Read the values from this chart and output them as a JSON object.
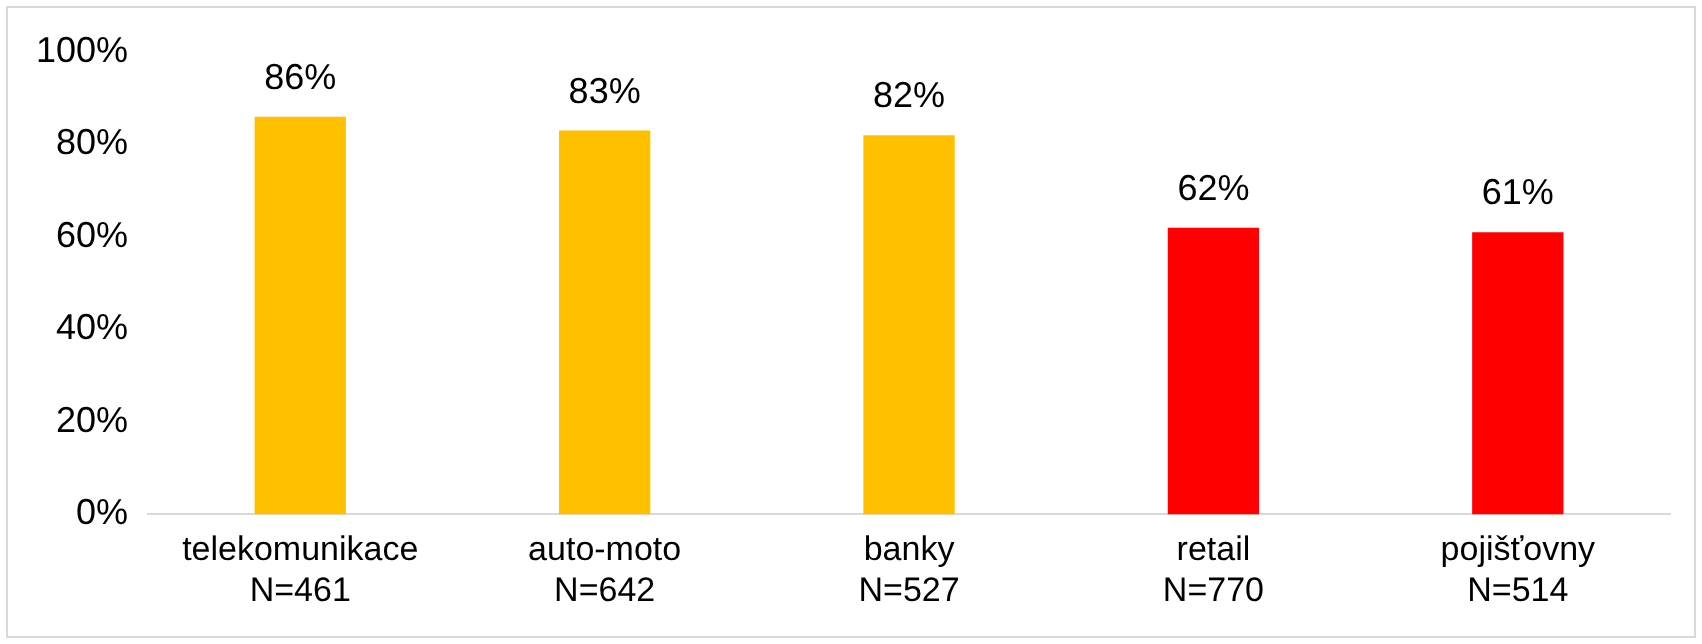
{
  "chart_data": {
    "type": "bar",
    "categories": [
      "telekomunikace\nN=461",
      "auto-moto\nN=642",
      "banky\nN=527",
      "retail\nN=770",
      "pojišťovny\nN=514"
    ],
    "values": [
      86,
      83,
      82,
      62,
      61
    ],
    "colors": [
      "#ffc000",
      "#ffc000",
      "#ffc000",
      "#ff0000",
      "#ff0000"
    ],
    "value_labels": [
      "86%",
      "83%",
      "82%",
      "62%",
      "61%"
    ],
    "ylim": [
      0,
      100
    ],
    "yticks": [
      {
        "value": 0,
        "label": "0%"
      },
      {
        "value": 20,
        "label": "20%"
      },
      {
        "value": 40,
        "label": "40%"
      },
      {
        "value": 60,
        "label": "60%"
      },
      {
        "value": 80,
        "label": "80%"
      },
      {
        "value": 100,
        "label": "100%"
      }
    ],
    "grid": false,
    "legend": false
  }
}
